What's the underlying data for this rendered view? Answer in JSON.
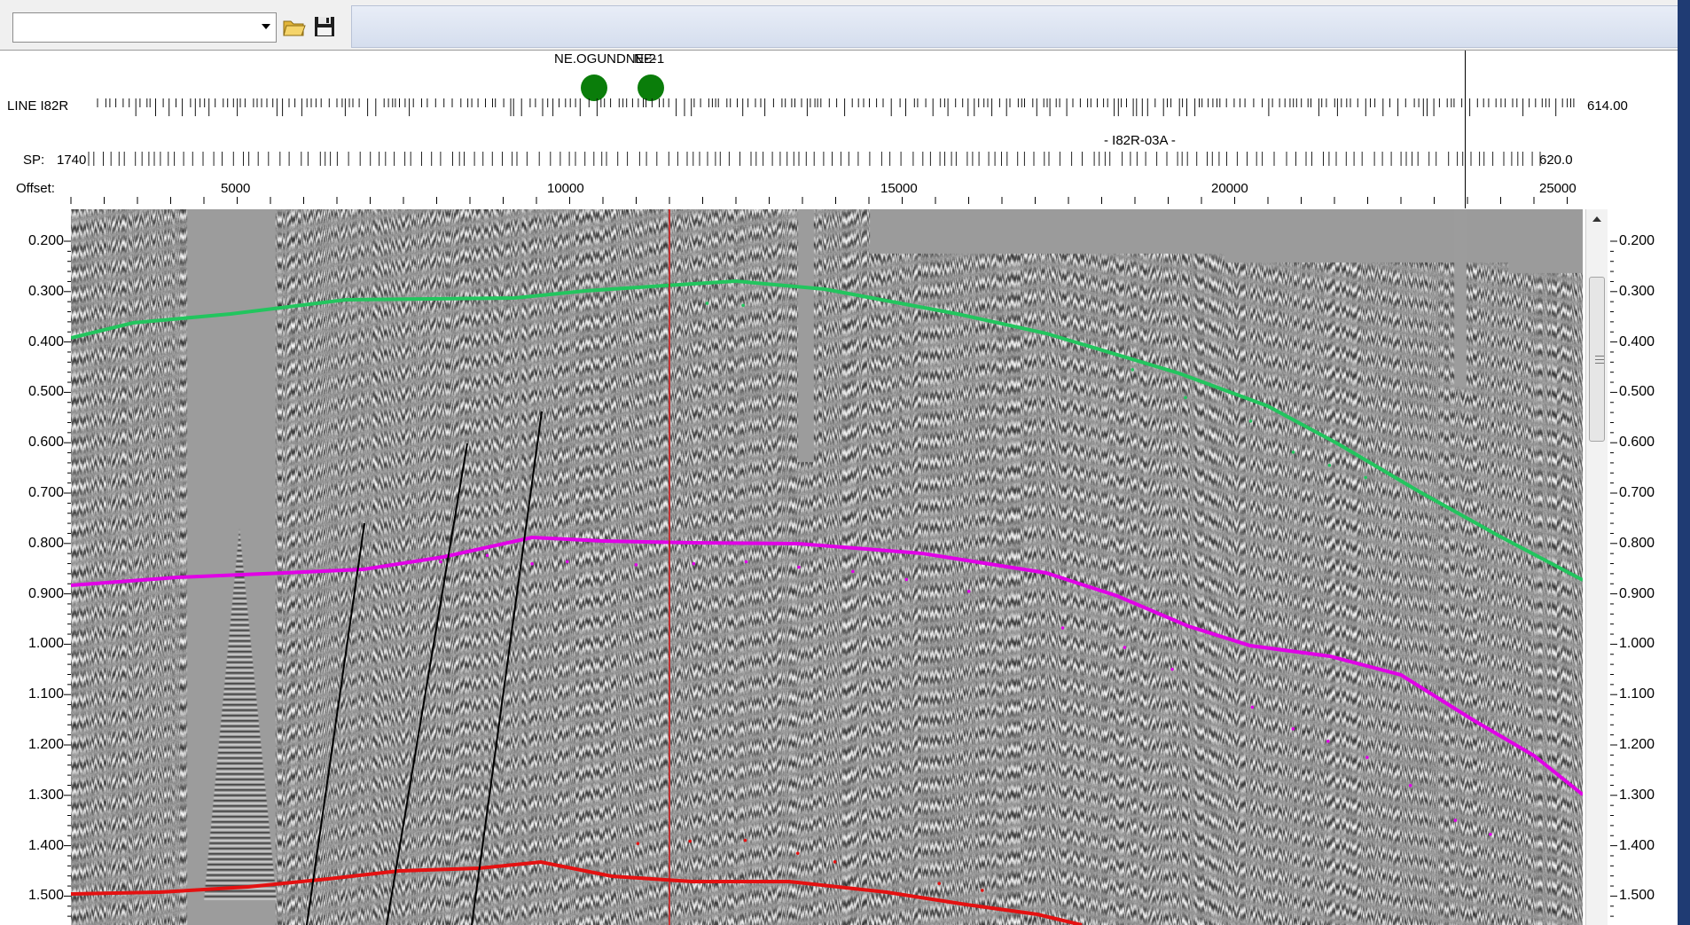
{
  "toolbar": {
    "combo_value": "",
    "open_icon": "folder-open-icon",
    "save_icon": "floppy-save-icon"
  },
  "wells": [
    {
      "name": "NE.OGUNDNE-2",
      "color": "#0a7d0a"
    },
    {
      "name": "NE-1",
      "color": "#0a7d0a"
    }
  ],
  "line": {
    "prefix": "LINE I82R",
    "end_value": "614.00",
    "segment_label": "- I82R-03A -"
  },
  "sp": {
    "label": "SP:",
    "first": "1740",
    "last": "620.0"
  },
  "offset": {
    "label": "Offset:",
    "ticks": [
      "5000",
      "10000",
      "15000",
      "20000",
      "25000"
    ]
  },
  "time_axis": {
    "left": [
      "0.200",
      "0.300",
      "0.400",
      "0.500",
      "0.600",
      "0.700",
      "0.800",
      "0.900",
      "1.000",
      "1.100",
      "1.200",
      "1.300",
      "1.400",
      "1.500"
    ],
    "right": [
      "0.200",
      "0.300",
      "0.400",
      "0.500",
      "0.600",
      "0.700",
      "0.800",
      "0.900",
      "1.000",
      "1.100",
      "1.200",
      "1.300",
      "1.400",
      "1.500"
    ]
  },
  "horizons": [
    {
      "name": "green",
      "color": "#22c55e"
    },
    {
      "name": "magenta",
      "color": "#e100e6"
    },
    {
      "name": "red",
      "color": "#e41111"
    }
  ],
  "colors": {
    "cursor": "#d01010",
    "fault": "#000000"
  }
}
